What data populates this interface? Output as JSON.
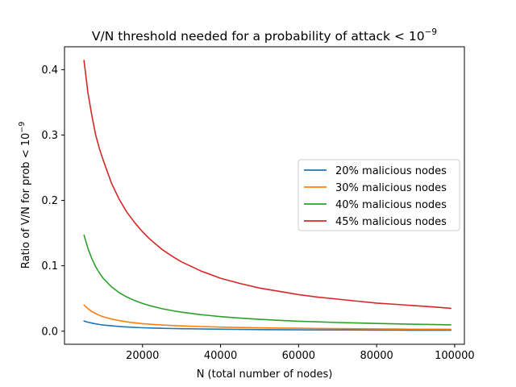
{
  "chart_data": {
    "type": "line",
    "title": "V/N threshold needed for a probability of attack < 10",
    "title_superscript": "−9",
    "xlabel": "N (total number of nodes)",
    "ylabel": "Ratio of V/N for prob < 10",
    "ylabel_superscript": "−9",
    "xlim": [
      0,
      102500
    ],
    "ylim": [
      -0.02,
      0.435
    ],
    "x_ticks": [
      20000,
      40000,
      60000,
      80000,
      100000
    ],
    "x_tick_labels": [
      "20000",
      "40000",
      "60000",
      "80000",
      "100000"
    ],
    "y_ticks": [
      0.0,
      0.1,
      0.2,
      0.3,
      0.4
    ],
    "y_tick_labels": [
      "0.0",
      "0.1",
      "0.2",
      "0.3",
      "0.4"
    ],
    "grid": false,
    "legend_position": "center-right",
    "x": [
      5000,
      6000,
      7000,
      8000,
      9000,
      10000,
      12000,
      14000,
      16000,
      18000,
      20000,
      22000,
      25000,
      28000,
      30000,
      35000,
      40000,
      45000,
      50000,
      55000,
      60000,
      65000,
      70000,
      75000,
      80000,
      85000,
      90000,
      95000,
      99000
    ],
    "series": [
      {
        "name": "20% malicious nodes",
        "color": "#1f77b4",
        "values": [
          0.0155,
          0.0138,
          0.0124,
          0.0112,
          0.0102,
          0.0094,
          0.0082,
          0.0072,
          0.0064,
          0.0058,
          0.0053,
          0.0049,
          0.0044,
          0.004,
          0.0038,
          0.0034,
          0.003,
          0.0027,
          0.0025,
          0.0023,
          0.0021,
          0.002,
          0.0019,
          0.0018,
          0.0017,
          0.0016,
          0.0015,
          0.0015,
          0.0014
        ]
      },
      {
        "name": "30% malicious nodes",
        "color": "#ff7f0e",
        "values": [
          0.04,
          0.0345,
          0.0302,
          0.0268,
          0.0241,
          0.0219,
          0.0186,
          0.0162,
          0.0143,
          0.0128,
          0.0116,
          0.0106,
          0.0095,
          0.0086,
          0.0081,
          0.0071,
          0.0063,
          0.0057,
          0.0052,
          0.0048,
          0.0045,
          0.0042,
          0.0039,
          0.0037,
          0.0035,
          0.0033,
          0.0031,
          0.003,
          0.0029
        ]
      },
      {
        "name": "40% malicious nodes",
        "color": "#2ca02c",
        "values": [
          0.147,
          0.127,
          0.111,
          0.0985,
          0.0885,
          0.0803,
          0.068,
          0.059,
          0.0522,
          0.0468,
          0.0424,
          0.0388,
          0.0344,
          0.031,
          0.0291,
          0.0252,
          0.0223,
          0.02,
          0.0181,
          0.0166,
          0.0153,
          0.0143,
          0.0133,
          0.0125,
          0.0118,
          0.0112,
          0.0106,
          0.0101,
          0.0097
        ]
      },
      {
        "name": "45% malicious nodes",
        "color": "#d62728",
        "values": [
          0.414,
          0.365,
          0.33,
          0.3,
          0.278,
          0.26,
          0.227,
          0.202,
          0.182,
          0.166,
          0.152,
          0.14,
          0.125,
          0.113,
          0.106,
          0.092,
          0.081,
          0.073,
          0.066,
          0.061,
          0.056,
          0.052,
          0.049,
          0.046,
          0.043,
          0.041,
          0.039,
          0.037,
          0.035
        ]
      }
    ]
  }
}
